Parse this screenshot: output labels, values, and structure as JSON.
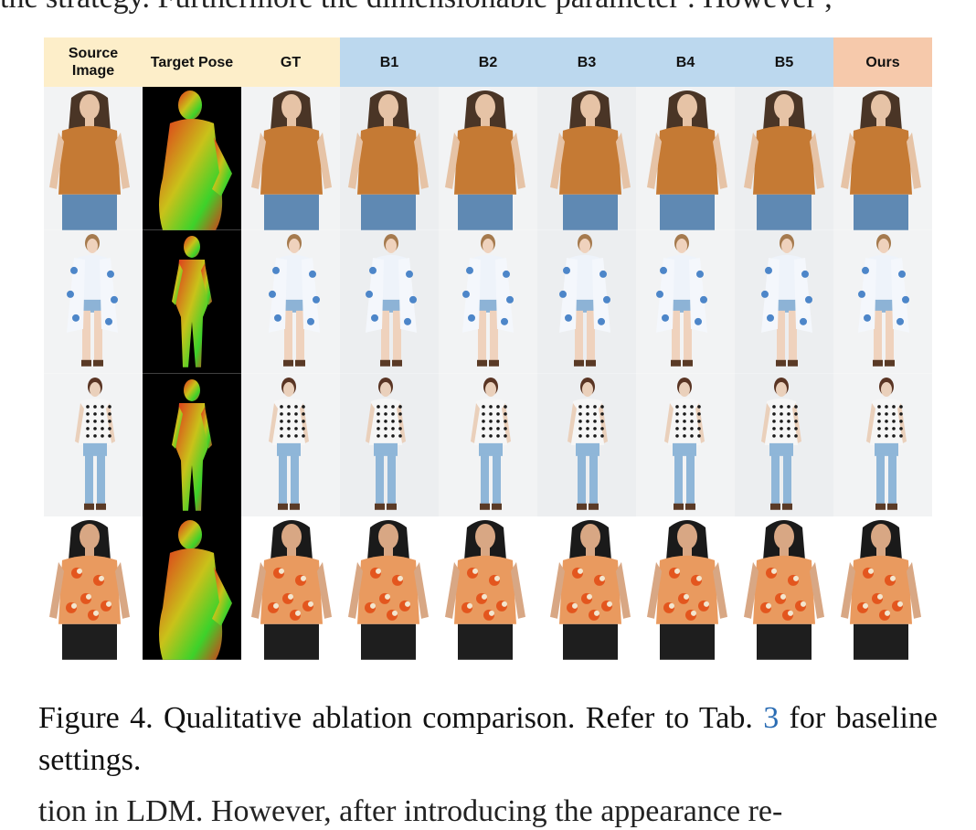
{
  "top_fragment": "the strategy. Furthermore the dimensionable parameter . However ,",
  "bottom_fragment": "tion in LDM. However, after introducing the appearance re-",
  "columns": [
    {
      "key": "source",
      "label": "Source Image",
      "group": "input"
    },
    {
      "key": "pose",
      "label": "Target Pose",
      "group": "input"
    },
    {
      "key": "gt",
      "label": "GT",
      "group": "input"
    },
    {
      "key": "b1",
      "label": "B1",
      "group": "baseline"
    },
    {
      "key": "b2",
      "label": "B2",
      "group": "baseline"
    },
    {
      "key": "b3",
      "label": "B3",
      "group": "baseline"
    },
    {
      "key": "b4",
      "label": "B4",
      "group": "baseline"
    },
    {
      "key": "b5",
      "label": "B5",
      "group": "baseline"
    },
    {
      "key": "ours",
      "label": "Ours",
      "group": "ours"
    }
  ],
  "group_colors": {
    "input": "#fdeec9",
    "baseline": "#bcd8ee",
    "ours": "#f6c9ab"
  },
  "rows": [
    {
      "garment": "orange-fringe-tank",
      "top_color": "#c57a34",
      "bottom_color": "#5f89b3",
      "hair_color": "#4a3526",
      "skin": "#e6c3a6",
      "pattern": "solid"
    },
    {
      "garment": "blue-floral-kimono",
      "top_color": "#eef3fa",
      "bottom_color": "#8db3d6",
      "hair_color": "#a57a4e",
      "skin": "#efd2bd",
      "pattern": "floral"
    },
    {
      "garment": "polka-dot-tee",
      "top_color": "#f6f6f6",
      "bottom_color": "#8fb6d8",
      "hair_color": "#5a3524",
      "skin": "#ead0bb",
      "pattern": "dots"
    },
    {
      "garment": "floral-crop-top",
      "top_color": "#e99a5f",
      "bottom_color": "#1e1e1e",
      "hair_color": "#1a1a1a",
      "skin": "#d8a784",
      "pattern": "flowers"
    }
  ],
  "caption": {
    "prefix": "Figure 4.  Qualitative ablation comparison.  Refer to Tab. ",
    "ref": "3",
    "suffix": " for baseline settings."
  }
}
